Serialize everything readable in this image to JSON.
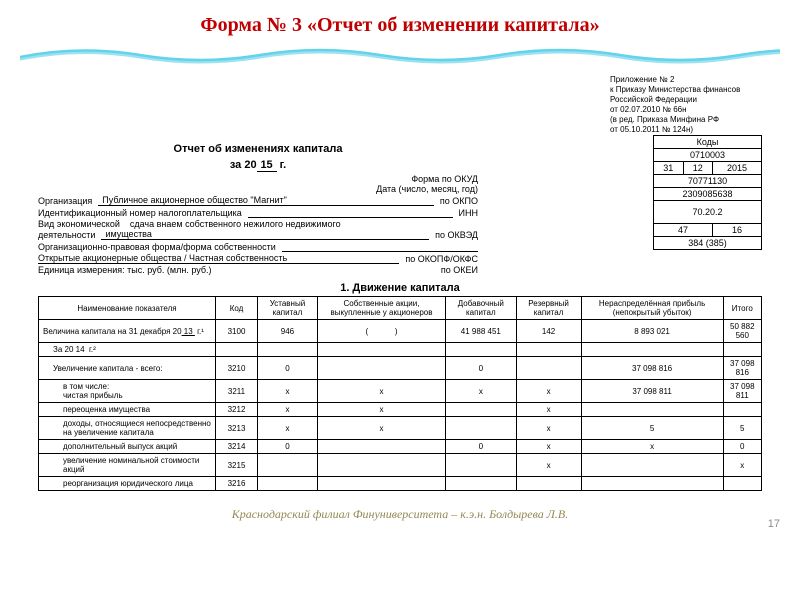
{
  "title": "Форма № 3 «Отчет об изменении капитала»",
  "wave": {
    "color1": "#63d3e9",
    "color2": "#9be2f0",
    "bg": "#ffffff"
  },
  "annex": {
    "l1": "Приложение № 2",
    "l2": "к Приказу Министерства финансов",
    "l3": "Российской Федерации",
    "l4": "от 02.07.2010 № 66н",
    "l5": "(в ред. Приказа Минфина РФ",
    "l6": "от 05.10.2011 № 124н)"
  },
  "report": {
    "head1": "Отчет об изменениях капитала",
    "head2_pre": "за 20",
    "head2_yy": "15",
    "head2_suf": "   г.",
    "codes_hdr": "Коды"
  },
  "meta_labels": {
    "okud": "Форма по ОКУД",
    "date": "Дата (число, месяц, год)",
    "org": "Организация",
    "okpo": "по ОКПО",
    "inn_label": "Идентификационный номер налогоплательщика",
    "inn": "ИНН",
    "activity1": "Вид экономической",
    "activity2": "деятельности",
    "activity_val1": "сдача внаем собственного нежилого недвижимого",
    "activity_val2": "имущества",
    "okved": "по ОКВЭД",
    "opf": "Организационно-правовая форма/форма собственности",
    "opf_val": "Открытые акционерные общества / Частная собственность",
    "okopf": "по ОКОПФ/ОКФС",
    "units": "Единица измерения: тыс. руб.  (млн. руб.)",
    "okei": "по ОКЕИ"
  },
  "org_name": "Публичное акционерное общество \"Магнит\"",
  "codes": {
    "okud": "0710003",
    "d": "31",
    "m": "12",
    "y": "2015",
    "okpo": "70771130",
    "inn": "2309085638",
    "okved": "70.20.2",
    "okopf1": "47",
    "okopf2": "16",
    "okei": "384 (385)"
  },
  "section1": "1. Движение капитала",
  "cols": {
    "c1": "Наименование показателя",
    "c2": "Код",
    "c3": "Уставный капитал",
    "c4": "Собственные акции, выкупленные у акционеров",
    "c5": "Добавочный капитал",
    "c6": "Резервный капитал",
    "c7": "Нераспределённая прибыль (непокрытый убыток)",
    "c8": "Итого"
  },
  "rows": [
    {
      "n": "Величина капитала на 31 декабря 20<u> 13 </u> г.¹",
      "k": "3100",
      "v": [
        "946",
        "(            )",
        "41 988 451",
        "142",
        "8 893 021",
        "50 882 560"
      ],
      "ind": 0
    },
    {
      "n": "За 20 14  г.²",
      "k": "",
      "v": [
        "",
        "",
        "",
        "",
        "",
        ""
      ],
      "ind": 1
    },
    {
      "n": "Увеличение капитала - всего:",
      "k": "3210",
      "v": [
        "0",
        "",
        "0",
        "",
        "37 098 816",
        "37 098 816"
      ],
      "ind": 1
    },
    {
      "n": "в том числе:\nчистая прибыль",
      "k": "3211",
      "v": [
        "x",
        "x",
        "x",
        "x",
        "37 098 811",
        "37 098 811"
      ],
      "ind": 2
    },
    {
      "n": "переоценка имущества",
      "k": "3212",
      "v": [
        "x",
        "x",
        "",
        "x",
        "",
        ""
      ],
      "ind": 2
    },
    {
      "n": "доходы, относящиеся непосредственно на увеличение капитала",
      "k": "3213",
      "v": [
        "x",
        "x",
        "",
        "x",
        "5",
        "5"
      ],
      "ind": 2
    },
    {
      "n": "дополнительный выпуск акций",
      "k": "3214",
      "v": [
        "0",
        "",
        "0",
        "x",
        "x",
        "0"
      ],
      "ind": 2
    },
    {
      "n": "увеличение номинальной стоимости акций",
      "k": "3215",
      "v": [
        "",
        "",
        "",
        "x",
        "",
        "x"
      ],
      "ind": 2
    },
    {
      "n": "реорганизация юридического лица",
      "k": "3216",
      "v": [
        "",
        "",
        "",
        "",
        "",
        ""
      ],
      "ind": 2
    }
  ],
  "footer": "Краснодарский филиал Финуниверситета – к.э.н. Болдырева Л.В.",
  "page": "17",
  "style": {
    "title_color": "#c00000",
    "footer_color": "#938953"
  }
}
